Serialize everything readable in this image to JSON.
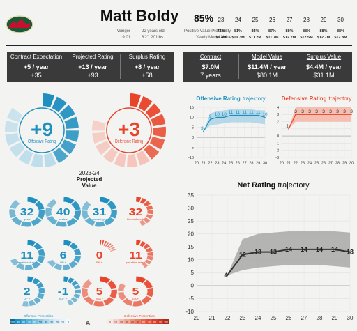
{
  "player": {
    "name": "Matt Boldy",
    "position": "Winger",
    "number": "19:01",
    "age": "22 years old",
    "size": "6'2\", 201lbs"
  },
  "header": {
    "prob_pct": "85%",
    "prob_label": "Positive Value Probability",
    "value_label": "Yearly Model Value",
    "years": [
      "23",
      "24",
      "25",
      "26",
      "27",
      "28",
      "29",
      "30"
    ],
    "probs": [
      "74%",
      "81%",
      "85%",
      "87%",
      "88%",
      "88%",
      "88%",
      "88%"
    ],
    "values": [
      "$9.4M",
      "$10.3M",
      "$11.2M",
      "$11.7M",
      "$12.2M",
      "$12.5M",
      "$12.7M",
      "$12.8M"
    ]
  },
  "left_box": {
    "headers": [
      "Contract Expectation",
      "Projected Rating",
      "Surplus Rating"
    ],
    "per_year": [
      "+5 / year",
      "+13 / year",
      "+8 / year"
    ],
    "totals": [
      "+35",
      "+93",
      "+58"
    ]
  },
  "right_box": {
    "headers": [
      "Contract",
      "Model Value",
      "Surplus Value"
    ],
    "per_year": [
      "$7.0M",
      "$11.4M / year",
      "$4.4M / year"
    ],
    "totals": [
      "7 years",
      "$80.1M",
      "$31.1M"
    ]
  },
  "big_donuts": [
    {
      "value": "+9",
      "label": "Offensive Rating",
      "color": "#1f8fbf",
      "light": "#a9d4e8",
      "fraction": 0.86
    },
    {
      "value": "+3",
      "label": "Defensive Rating",
      "color": "#e8442a",
      "light": "#f6b3a6",
      "fraction": 0.8
    }
  ],
  "projected": {
    "season": "2023-24",
    "title": "Projected",
    "subtitle": "Value"
  },
  "small_donuts": [
    {
      "value": "32",
      "label": "goals",
      "color": "#1f8fbf",
      "fraction": 0.9
    },
    {
      "value": "40",
      "label": "assists",
      "color": "#1f8fbf",
      "fraction": 0.92
    },
    {
      "value": "31",
      "label": "expected goals",
      "color": "#1f8fbf",
      "fraction": 0.88
    },
    {
      "value": "32",
      "label": "blocked shots",
      "color": "#e8442a",
      "fraction": 0.45
    },
    {
      "value": "11",
      "label": "penalties drawn",
      "color": "#1f8fbf",
      "fraction": 0.7
    },
    {
      "value": "6",
      "label": "PP +",
      "color": "#1f8fbf",
      "fraction": 0.68
    },
    {
      "value": "0",
      "label": "PK +",
      "color": "#e8442a",
      "fraction": 0.2
    },
    {
      "value": "11",
      "label": "penalties taken",
      "color": "#e8442a",
      "fraction": 0.42
    },
    {
      "value": "2",
      "label": "GF +",
      "color": "#1f8fbf",
      "fraction": 0.55
    },
    {
      "value": "-1",
      "label": "xGF +",
      "color": "#1f8fbf",
      "fraction": 0.45
    },
    {
      "value": "5",
      "label": "xGA +",
      "color": "#e8442a",
      "fraction": 0.9
    },
    {
      "value": "5",
      "label": "GA +",
      "color": "#e8442a",
      "fraction": 0.85
    }
  ],
  "legend": {
    "off_label": "Offensive Percentiles",
    "def_label": "Defensive Percentiles",
    "ticks": [
      "100",
      "90",
      "80",
      "70",
      "60",
      "50",
      "40",
      "30",
      "20",
      "10",
      "0"
    ],
    "mark": "A"
  },
  "chart_data": [
    {
      "type": "line",
      "title": "Offensive Rating",
      "title_suffix": "trajectory",
      "color": "#1f8fbf",
      "band_color": "#a9d4e8",
      "x": [
        21,
        22,
        23,
        24,
        25,
        26,
        27,
        28,
        29,
        30
      ],
      "x_ticks": [
        "20",
        "21",
        "22",
        "23",
        "24",
        "25",
        "26",
        "27",
        "28",
        "29",
        "30"
      ],
      "xlim": [
        20,
        30
      ],
      "ylim": [
        -10,
        15
      ],
      "y_ticks": [
        15,
        10,
        5,
        0,
        -5,
        -10
      ],
      "y": [
        3,
        9,
        10,
        10,
        11,
        11,
        11,
        11,
        11,
        10
      ],
      "labels": [
        "3",
        "9",
        "10",
        "10",
        "11",
        "11",
        "11",
        "11",
        "11",
        "10"
      ],
      "lower": [
        3,
        6,
        6.5,
        7,
        7.5,
        7.5,
        7.5,
        7.5,
        7,
        6.5
      ],
      "upper": [
        3,
        12,
        13,
        13.5,
        14,
        14,
        14,
        14,
        13.5,
        13.5
      ]
    },
    {
      "type": "line",
      "title": "Defensive Rating",
      "title_suffix": "trajectory",
      "color": "#e8442a",
      "band_color": "#f6b3a6",
      "x": [
        21,
        22,
        23,
        24,
        25,
        26,
        27,
        28,
        29,
        30
      ],
      "x_ticks": [
        "20",
        "21",
        "22",
        "23",
        "24",
        "25",
        "26",
        "27",
        "28",
        "29",
        "30"
      ],
      "xlim": [
        20,
        30
      ],
      "ylim": [
        -3,
        4
      ],
      "y_ticks": [
        4,
        3,
        2,
        1,
        0,
        -1,
        -2,
        -3
      ],
      "y": [
        1,
        3,
        3,
        3,
        3,
        3,
        3,
        3,
        3,
        3
      ],
      "labels": [
        "1",
        "3",
        "3",
        "3",
        "3",
        "3",
        "3",
        "3",
        "3",
        "3"
      ],
      "lower": [
        1,
        2,
        2,
        2,
        2,
        2,
        2,
        2,
        2,
        2
      ],
      "upper": [
        1,
        4,
        4,
        4,
        4,
        4,
        4,
        4,
        4,
        4
      ]
    },
    {
      "type": "line",
      "title": "Net Rating",
      "title_suffix": "trajectory",
      "color": "#333333",
      "band_color": "#a8a8a8",
      "x": [
        22,
        23,
        24,
        25,
        26,
        27,
        28,
        29,
        30
      ],
      "x_ticks": [
        "20",
        "21",
        "22",
        "23",
        "24",
        "25",
        "26",
        "27",
        "28",
        "29",
        "30"
      ],
      "xlim": [
        20,
        30
      ],
      "ylim": [
        -10,
        35
      ],
      "y_ticks": [
        35,
        30,
        25,
        20,
        15,
        10,
        5,
        0,
        -5,
        -10
      ],
      "y": [
        4,
        12,
        13,
        13,
        14,
        14,
        14,
        14,
        13
      ],
      "labels": [
        "4",
        "12",
        "13",
        "13",
        "14",
        "14",
        "14",
        "14",
        "13"
      ],
      "lower": [
        4,
        6,
        7,
        7.5,
        8,
        8,
        8,
        7.5,
        7
      ],
      "upper": [
        4,
        18,
        20,
        20.5,
        21,
        21,
        21,
        21,
        20.5
      ]
    }
  ]
}
